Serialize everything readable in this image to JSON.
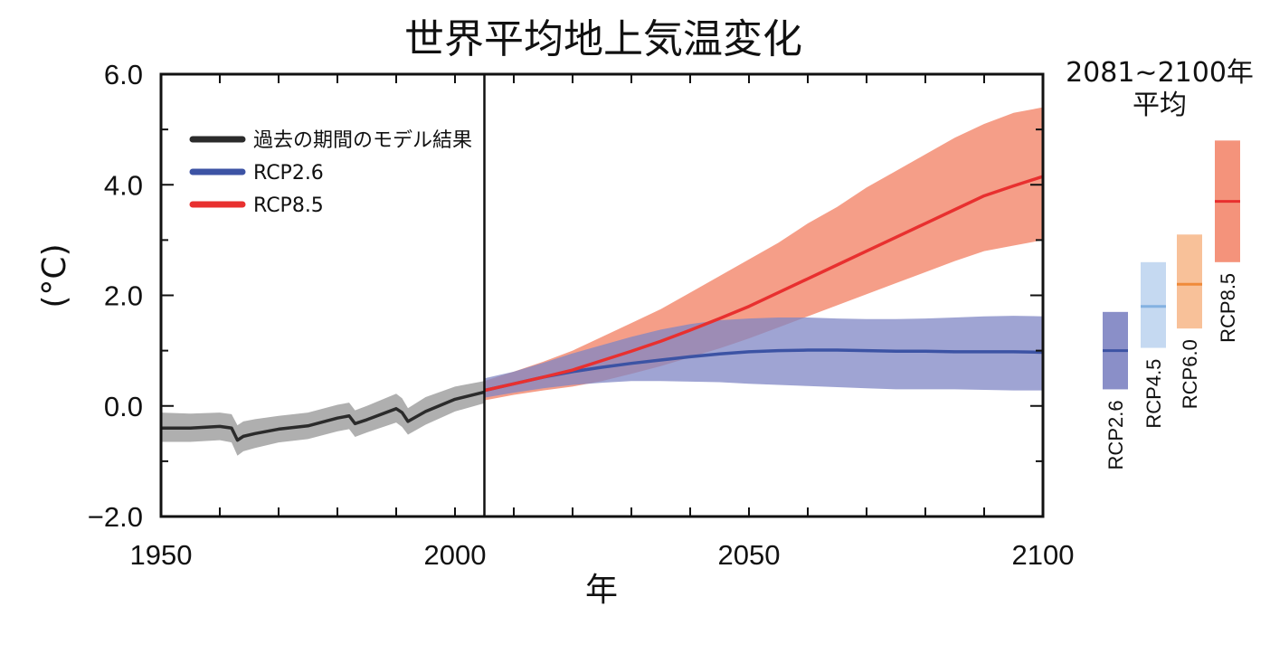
{
  "chart_data": {
    "type": "line",
    "title": "世界平均地上気温変化",
    "xlabel": "年",
    "ylabel": "(°C)",
    "xlim": [
      1950,
      2100
    ],
    "ylim": [
      -2.0,
      6.0
    ],
    "xticks": [
      "1950",
      "2000",
      "2050",
      "2100"
    ],
    "yticks": [
      "6.0",
      "4.0",
      "2.0",
      "0.0",
      "−2.0"
    ],
    "divider_year": 2005,
    "legend": {
      "placement": "top-left",
      "entries": [
        "過去の期間のモデル結果",
        "RCP2.6",
        "RCP8.5"
      ]
    },
    "series": [
      {
        "name": "過去の期間のモデル結果",
        "color": "#2b2b2b",
        "band_color": "#a6a6a6",
        "x": [
          1950,
          1955,
          1960,
          1962,
          1963,
          1964,
          1966,
          1970,
          1975,
          1980,
          1982,
          1983,
          1985,
          1990,
          1991,
          1992,
          1995,
          2000,
          2005
        ],
        "y": [
          -0.4,
          -0.4,
          -0.37,
          -0.4,
          -0.62,
          -0.55,
          -0.5,
          -0.42,
          -0.36,
          -0.22,
          -0.18,
          -0.32,
          -0.25,
          -0.05,
          -0.12,
          -0.28,
          -0.1,
          0.12,
          0.25
        ],
        "low": [
          -0.65,
          -0.65,
          -0.62,
          -0.66,
          -0.9,
          -0.82,
          -0.76,
          -0.66,
          -0.6,
          -0.46,
          -0.42,
          -0.56,
          -0.48,
          -0.3,
          -0.38,
          -0.52,
          -0.34,
          -0.1,
          0.05
        ],
        "high": [
          -0.12,
          -0.14,
          -0.12,
          -0.15,
          -0.35,
          -0.28,
          -0.24,
          -0.18,
          -0.12,
          0.02,
          0.06,
          -0.08,
          0.0,
          0.22,
          0.14,
          -0.04,
          0.16,
          0.35,
          0.45
        ]
      },
      {
        "name": "RCP2.6",
        "color": "#3c53a4",
        "band_color": "#7f86c4",
        "x": [
          2005,
          2010,
          2015,
          2020,
          2025,
          2030,
          2035,
          2040,
          2045,
          2050,
          2055,
          2060,
          2065,
          2070,
          2075,
          2080,
          2085,
          2090,
          2095,
          2100
        ],
        "y": [
          0.28,
          0.4,
          0.52,
          0.62,
          0.7,
          0.77,
          0.83,
          0.89,
          0.94,
          0.98,
          1.0,
          1.01,
          1.01,
          1.0,
          0.99,
          0.99,
          0.98,
          0.98,
          0.98,
          0.97
        ],
        "low": [
          0.15,
          0.24,
          0.32,
          0.38,
          0.42,
          0.45,
          0.45,
          0.44,
          0.43,
          0.4,
          0.38,
          0.36,
          0.34,
          0.32,
          0.3,
          0.3,
          0.3,
          0.29,
          0.28,
          0.28
        ],
        "high": [
          0.5,
          0.62,
          0.78,
          0.95,
          1.1,
          1.25,
          1.38,
          1.48,
          1.55,
          1.58,
          1.6,
          1.6,
          1.58,
          1.57,
          1.57,
          1.58,
          1.6,
          1.62,
          1.63,
          1.62
        ]
      },
      {
        "name": "RCP8.5",
        "color": "#e8302f",
        "band_color": "#f4937b",
        "x": [
          2005,
          2010,
          2015,
          2020,
          2025,
          2030,
          2035,
          2040,
          2045,
          2050,
          2055,
          2060,
          2065,
          2070,
          2075,
          2080,
          2085,
          2090,
          2095,
          2100
        ],
        "y": [
          0.28,
          0.4,
          0.52,
          0.65,
          0.82,
          0.99,
          1.17,
          1.37,
          1.58,
          1.8,
          2.05,
          2.3,
          2.55,
          2.8,
          3.05,
          3.3,
          3.55,
          3.8,
          3.98,
          4.15
        ],
        "low": [
          0.1,
          0.2,
          0.28,
          0.35,
          0.45,
          0.58,
          0.72,
          0.88,
          1.04,
          1.22,
          1.42,
          1.62,
          1.82,
          2.02,
          2.22,
          2.42,
          2.62,
          2.8,
          2.9,
          3.0
        ],
        "high": [
          0.45,
          0.62,
          0.8,
          1.0,
          1.25,
          1.5,
          1.75,
          2.05,
          2.35,
          2.65,
          2.95,
          3.3,
          3.6,
          3.95,
          4.25,
          4.55,
          4.85,
          5.1,
          5.3,
          5.4
        ]
      }
    ],
    "period_average": {
      "title_line1": "2081∼2100年",
      "title_line2": "平均",
      "bars": [
        {
          "name": "RCP2.6",
          "low": 0.3,
          "high": 1.7,
          "mean": 1.0,
          "color": "#8a8fc8",
          "line_color": "#3c53a4"
        },
        {
          "name": "RCP4.5",
          "low": 1.05,
          "high": 2.6,
          "mean": 1.8,
          "color": "#c5d9f1",
          "line_color": "#84b1e1"
        },
        {
          "name": "RCP6.0",
          "low": 1.4,
          "high": 3.1,
          "mean": 2.2,
          "color": "#f8c199",
          "line_color": "#ef8a3a"
        },
        {
          "name": "RCP8.5",
          "low": 2.6,
          "high": 4.8,
          "mean": 3.7,
          "color": "#f4937b",
          "line_color": "#e8302f"
        }
      ]
    }
  }
}
